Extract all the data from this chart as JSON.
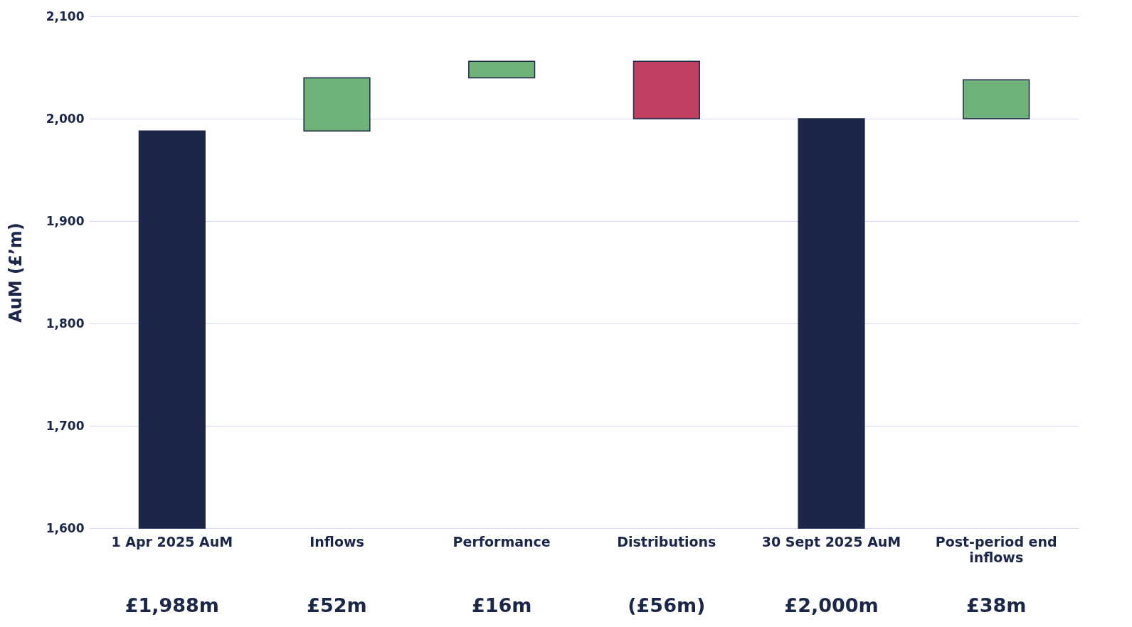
{
  "chart_data": {
    "type": "bar",
    "ylabel": "AuM (£’m)",
    "categories": [
      "1 Apr 2025 AuM",
      "Inflows",
      "Performance",
      "Distributions",
      "30 Sept 2025 AuM",
      "Post-period end inflows"
    ],
    "values": [
      1988,
      52,
      16,
      -56,
      2000,
      38
    ],
    "base": [
      null,
      1988,
      2040,
      2056,
      null,
      2000
    ],
    "colors": [
      "#1b2648",
      "#70b37a",
      "#70b37a",
      "#c04064",
      "#1b2648",
      "#70b37a"
    ],
    "value_labels": [
      "£1,988m",
      "£52m",
      "£16m",
      "(£56m)",
      "£2,000m",
      "£38m"
    ],
    "ylim": [
      1600,
      2100
    ],
    "yticks": [
      {
        "value": 1600,
        "label": "1,600"
      },
      {
        "value": 1700,
        "label": "1,700"
      },
      {
        "value": 1800,
        "label": "1,800"
      },
      {
        "value": 1900,
        "label": "1,900"
      },
      {
        "value": 2000,
        "label": "2,000"
      },
      {
        "value": 2100,
        "label": "2,100"
      }
    ],
    "grid": "y",
    "legend": false
  }
}
